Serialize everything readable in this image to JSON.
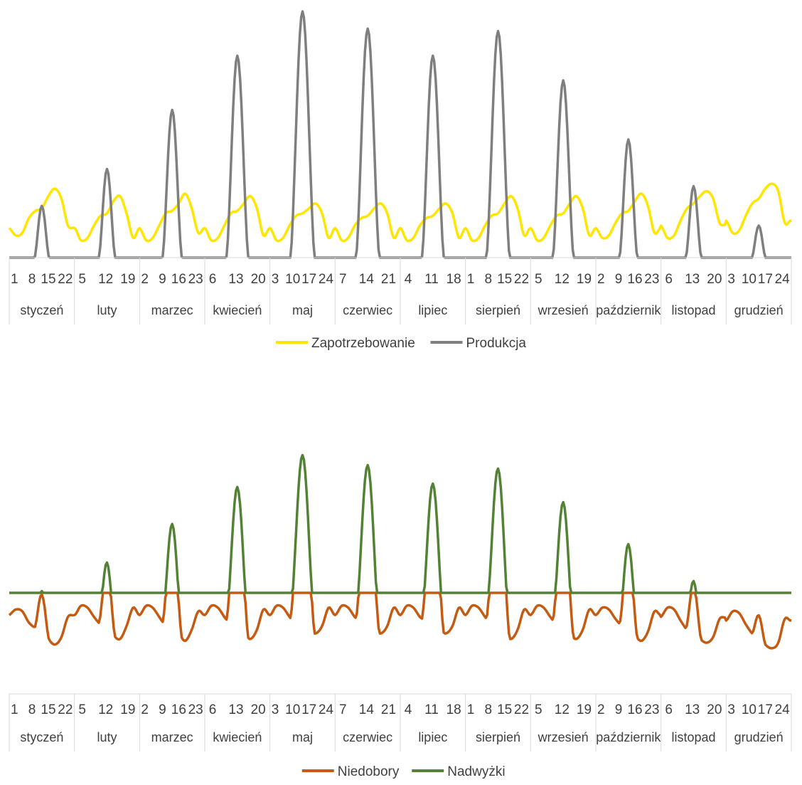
{
  "chart_data": [
    {
      "type": "line",
      "title": "",
      "xlabel": "",
      "ylabel": "",
      "months": [
        "styczeń",
        "luty",
        "marzec",
        "kwiecień",
        "maj",
        "czerwiec",
        "lipiec",
        "sierpień",
        "wrzesień",
        "październik",
        "listopad",
        "grudzień"
      ],
      "hour_ticks": [
        "1",
        "8",
        "15",
        "22",
        "5",
        "12",
        "19",
        "2",
        "9",
        "16",
        "23",
        "6",
        "13",
        "20",
        "3",
        "10",
        "17",
        "24",
        "7",
        "14",
        "21",
        "4",
        "11",
        "18",
        "1",
        "8",
        "15",
        "22",
        "5",
        "12",
        "19",
        "2",
        "9",
        "16",
        "23",
        "6",
        "13",
        "20",
        "3",
        "10",
        "17",
        "24"
      ],
      "ylim": [
        0,
        100
      ],
      "legend": "bottom",
      "grid": false,
      "series": [
        {
          "name": "Zapotrzebowanie",
          "color": "#FFE600",
          "values_per_month": [
            [
              12,
              9,
              10,
              16,
              19,
              20,
              25,
              28,
              24,
              13
            ],
            [
              12,
              7,
              8,
              13,
              17,
              18,
              23,
              25,
              18,
              8
            ],
            [
              12,
              7,
              8,
              13,
              18,
              19,
              22,
              26,
              20,
              10
            ],
            [
              12,
              7,
              8,
              13,
              18,
              19,
              22,
              25,
              20,
              9
            ],
            [
              12,
              7,
              8,
              13,
              17,
              18,
              20,
              22,
              18,
              8
            ],
            [
              12,
              7,
              8,
              13,
              16,
              17,
              20,
              22,
              18,
              8
            ],
            [
              12,
              7,
              8,
              13,
              16,
              17,
              20,
              22,
              18,
              8
            ],
            [
              12,
              7,
              8,
              13,
              17,
              18,
              22,
              25,
              20,
              9
            ],
            [
              12,
              7,
              8,
              13,
              17,
              18,
              22,
              25,
              20,
              9
            ],
            [
              12,
              8,
              9,
              14,
              18,
              19,
              23,
              26,
              21,
              10
            ],
            [
              13,
              8,
              9,
              15,
              20,
              22,
              25,
              27,
              24,
              14
            ],
            [
              15,
              10,
              11,
              17,
              22,
              24,
              28,
              30,
              27,
              14
            ]
          ]
        },
        {
          "name": "Produkcja",
          "color": "#7F7F7F",
          "peaks": [
            21,
            36,
            60,
            82,
            100,
            93,
            82,
            92,
            72,
            48,
            29,
            13
          ]
        }
      ]
    },
    {
      "type": "line",
      "title": "",
      "xlabel": "",
      "ylabel": "",
      "months": [
        "styczeń",
        "luty",
        "marzec",
        "kwiecień",
        "maj",
        "czerwiec",
        "lipiec",
        "sierpień",
        "wrzesień",
        "październik",
        "listopad",
        "grudzień"
      ],
      "hour_ticks": [
        "1",
        "8",
        "15",
        "22",
        "5",
        "12",
        "19",
        "2",
        "9",
        "16",
        "23",
        "6",
        "13",
        "20",
        "3",
        "10",
        "17",
        "24",
        "7",
        "14",
        "21",
        "4",
        "11",
        "18",
        "1",
        "8",
        "15",
        "22",
        "5",
        "12",
        "19",
        "2",
        "9",
        "16",
        "23",
        "6",
        "13",
        "20",
        "3",
        "10",
        "17",
        "24"
      ],
      "ylim": [
        -35,
        100
      ],
      "legend": "bottom",
      "grid": false,
      "series": [
        {
          "name": "Niedobory",
          "color": "#C55A11"
        },
        {
          "name": "Nadwyżki",
          "color": "#548235"
        }
      ]
    }
  ]
}
